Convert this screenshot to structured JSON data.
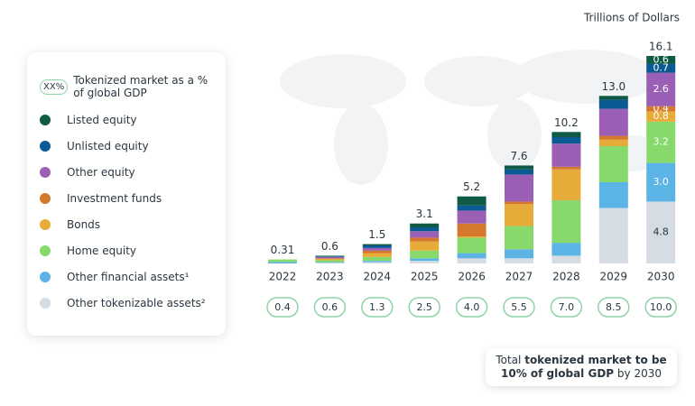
{
  "chart_data": {
    "type": "stacked-bar",
    "unit_label": "Trillions of Dollars",
    "categories": [
      "2022",
      "2023",
      "2024",
      "2025",
      "2026",
      "2027",
      "2028",
      "2029",
      "2030"
    ],
    "ylim": [
      0,
      16.1
    ],
    "series": [
      {
        "name": "Listed equity",
        "color": "#0e5a44",
        "values": [
          0,
          0.05,
          0.1,
          0.3,
          0.7,
          0.3,
          0.4,
          0.3,
          0.6
        ],
        "value_labels": [
          null,
          null,
          null,
          null,
          null,
          null,
          null,
          null,
          "0.6"
        ]
      },
      {
        "name": "Unlisted equity",
        "color": "#0b5a94",
        "values": [
          0,
          0.05,
          0.2,
          0.3,
          0.4,
          0.4,
          0.5,
          0.7,
          0.7
        ],
        "value_labels": [
          null,
          null,
          null,
          null,
          null,
          null,
          null,
          null,
          "0.7"
        ]
      },
      {
        "name": "Other equity",
        "color": "#9b5fb5",
        "values": [
          0,
          0.1,
          0.2,
          0.5,
          1.0,
          2.1,
          1.8,
          2.1,
          2.6
        ],
        "value_labels": [
          null,
          null,
          null,
          null,
          null,
          null,
          null,
          null,
          "2.6"
        ]
      },
      {
        "name": "Investment funds",
        "color": "#d4782d",
        "values": [
          0,
          0.05,
          0.2,
          0.3,
          1.0,
          0.2,
          0.2,
          0.3,
          0.4
        ],
        "value_labels": [
          null,
          null,
          null,
          null,
          null,
          null,
          null,
          null,
          "0.4"
        ]
      },
      {
        "name": "Bonds",
        "color": "#e7ab3a",
        "values": [
          0,
          0.1,
          0.3,
          0.7,
          0.1,
          1.7,
          2.4,
          0.5,
          0.8
        ],
        "value_labels": [
          null,
          null,
          null,
          null,
          null,
          null,
          null,
          null,
          "0.8"
        ]
      },
      {
        "name": "Home equity",
        "color": "#86d96a",
        "values": [
          0.2,
          0.15,
          0.3,
          0.6,
          1.2,
          1.8,
          3.3,
          2.8,
          3.2
        ],
        "value_labels": [
          null,
          null,
          null,
          null,
          null,
          null,
          null,
          null,
          "3.2"
        ]
      },
      {
        "name": "Other financial assets¹",
        "color": "#5bb4e5",
        "values": [
          0.11,
          0.05,
          0.1,
          0.2,
          0.4,
          0.7,
          1.0,
          2.0,
          3.0
        ],
        "value_labels": [
          null,
          null,
          null,
          null,
          null,
          null,
          null,
          null,
          "3.0"
        ]
      },
      {
        "name": "Other tokenizable assets²",
        "color": "#d5dce3",
        "values": [
          0,
          0.05,
          0.1,
          0.2,
          0.4,
          0.4,
          0.6,
          4.3,
          4.8
        ],
        "value_labels": [
          null,
          null,
          null,
          null,
          null,
          null,
          null,
          null,
          "4.8"
        ]
      }
    ],
    "totals": {
      "values": [
        0.31,
        0.6,
        1.5,
        3.1,
        5.2,
        7.6,
        10.2,
        13.0,
        16.1
      ],
      "value_labels": [
        "0.31",
        "0.6",
        "1.5",
        "3.1",
        "5.2",
        "7.6",
        "10.2",
        "13.0",
        "16.1"
      ]
    },
    "gdp_share": {
      "values": [
        0.4,
        0.6,
        1.3,
        2.5,
        4.0,
        5.5,
        7.0,
        8.5,
        10.0
      ],
      "value_labels": [
        "0.4",
        "0.6",
        "1.3",
        "2.5",
        "4.0",
        "5.5",
        "7.0",
        "8.5",
        "10.0"
      ]
    },
    "legend_gdp_sample": "XX%",
    "legend_gdp_label": "Tokenized market as a % of global GDP",
    "callout": [
      {
        "text": "Total",
        "bold": false
      },
      {
        "text": "tokenized market to be",
        "bold": true
      },
      {
        "text": "10% of global GDP",
        "bold": true
      },
      {
        "text": "by 2030",
        "bold": false
      }
    ]
  }
}
